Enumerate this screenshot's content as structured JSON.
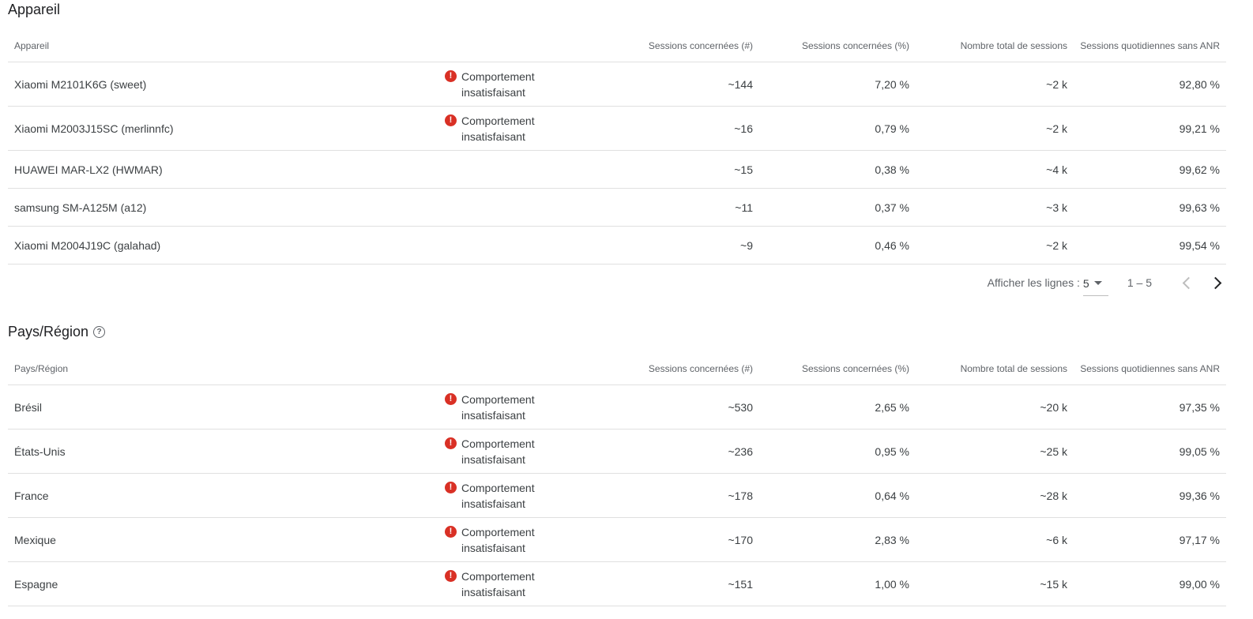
{
  "devices": {
    "title": "Appareil",
    "columns": [
      "Appareil",
      "",
      "Sessions concernées (#)",
      "Sessions concernées (%)",
      "Nombre total de sessions",
      "Sessions quotidiennes sans ANR"
    ],
    "rows": [
      {
        "name": "Xiaomi M2101K6G (sweet)",
        "status": "Comportement insatisfaisant",
        "count": "~144",
        "pct": "7,20 %",
        "total": "~2 k",
        "anr_free": "92,80 %"
      },
      {
        "name": "Xiaomi M2003J15SC (merlinnfc)",
        "status": "Comportement insatisfaisant",
        "count": "~16",
        "pct": "0,79 %",
        "total": "~2 k",
        "anr_free": "99,21 %"
      },
      {
        "name": "HUAWEI MAR-LX2 (HWMAR)",
        "status": "",
        "count": "~15",
        "pct": "0,38 %",
        "total": "~4 k",
        "anr_free": "99,62 %"
      },
      {
        "name": "samsung SM-A125M (a12)",
        "status": "",
        "count": "~11",
        "pct": "0,37 %",
        "total": "~3 k",
        "anr_free": "99,63 %"
      },
      {
        "name": "Xiaomi M2004J19C (galahad)",
        "status": "",
        "count": "~9",
        "pct": "0,46 %",
        "total": "~2 k",
        "anr_free": "99,54 %"
      }
    ]
  },
  "pagination": {
    "rows_label": "Afficher les lignes :",
    "rows_value": "5",
    "range": "1 – 5"
  },
  "countries": {
    "title": "Pays/Région",
    "columns": [
      "Pays/Région",
      "",
      "Sessions concernées (#)",
      "Sessions concernées (%)",
      "Nombre total de sessions",
      "Sessions quotidiennes sans ANR"
    ],
    "rows": [
      {
        "name": "Brésil",
        "status": "Comportement insatisfaisant",
        "count": "~530",
        "pct": "2,65 %",
        "total": "~20 k",
        "anr_free": "97,35 %"
      },
      {
        "name": "États-Unis",
        "status": "Comportement insatisfaisant",
        "count": "~236",
        "pct": "0,95 %",
        "total": "~25 k",
        "anr_free": "99,05 %"
      },
      {
        "name": "France",
        "status": "Comportement insatisfaisant",
        "count": "~178",
        "pct": "0,64 %",
        "total": "~28 k",
        "anr_free": "99,36 %"
      },
      {
        "name": "Mexique",
        "status": "Comportement insatisfaisant",
        "count": "~170",
        "pct": "2,83 %",
        "total": "~6 k",
        "anr_free": "97,17 %"
      },
      {
        "name": "Espagne",
        "status": "Comportement insatisfaisant",
        "count": "~151",
        "pct": "1,00 %",
        "total": "~15 k",
        "anr_free": "99,00 %"
      }
    ]
  }
}
